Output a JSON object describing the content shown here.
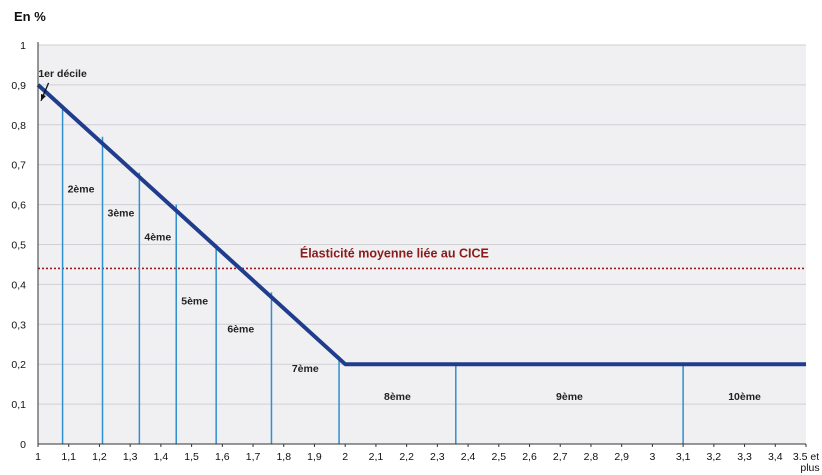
{
  "chart_data": {
    "type": "line",
    "unit_label": "En %",
    "ylim": [
      0,
      1
    ],
    "xlim": [
      1,
      3.5
    ],
    "y_ticks": [
      "0",
      "0,1",
      "0,2",
      "0,3",
      "0,4",
      "0,5",
      "0,6",
      "0,7",
      "0,8",
      "0,9",
      "1"
    ],
    "x_ticks": [
      "1",
      "1,1",
      "1,2",
      "1,3",
      "1,4",
      "1,5",
      "1,6",
      "1,7",
      "1,8",
      "1,9",
      "2",
      "2,1",
      "2,2",
      "2,3",
      "2,4",
      "2,5",
      "2,6",
      "2,7",
      "2,8",
      "2,9",
      "3",
      "3,1",
      "3,2",
      "3,3",
      "3,4",
      "3.5 et plus"
    ],
    "grid": "horizontal",
    "series": [
      {
        "x": [
          1,
          2,
          3.5
        ],
        "y": [
          0.9,
          0.2,
          0.2
        ],
        "color": "#1f3d8c"
      }
    ],
    "decile_boundaries": [
      {
        "x": 1.08,
        "y": 0.85
      },
      {
        "x": 1.21,
        "y": 0.77
      },
      {
        "x": 1.33,
        "y": 0.68
      },
      {
        "x": 1.45,
        "y": 0.6
      },
      {
        "x": 1.58,
        "y": 0.5
      },
      {
        "x": 1.76,
        "y": 0.38
      },
      {
        "x": 1.98,
        "y": 0.22
      },
      {
        "x": 2.36,
        "y": 0.2
      },
      {
        "x": 3.1,
        "y": 0.2
      }
    ],
    "decile_labels": [
      {
        "text": "1er décile",
        "x": 1.08,
        "y": 0.93
      },
      {
        "text": "2ème",
        "x": 1.14,
        "y": 0.64
      },
      {
        "text": "3ème",
        "x": 1.27,
        "y": 0.58
      },
      {
        "text": "4ème",
        "x": 1.39,
        "y": 0.52
      },
      {
        "text": "5ème",
        "x": 1.51,
        "y": 0.36
      },
      {
        "text": "6ème",
        "x": 1.66,
        "y": 0.29
      },
      {
        "text": "7ème",
        "x": 1.87,
        "y": 0.19
      },
      {
        "text": "8ème",
        "x": 2.17,
        "y": 0.12
      },
      {
        "text": "9ème",
        "x": 2.73,
        "y": 0.12
      },
      {
        "text": "10ème",
        "x": 3.3,
        "y": 0.12
      }
    ],
    "reference_line": {
      "label": "Élasticité moyenne liée au CICE",
      "y": 0.44,
      "color": "#9b1c1c"
    },
    "colors": {
      "line": "#1f3d8c",
      "deciles": "#2f8fd0",
      "plot_bg": "#f0f0f2",
      "grid": "#cfcfd4"
    }
  }
}
